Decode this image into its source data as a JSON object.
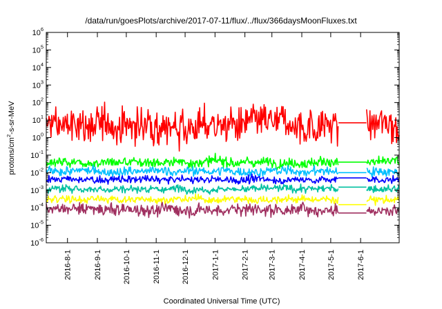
{
  "chart_data": {
    "type": "line",
    "title": "/data/run/goesPlots/archive/2017-07-11/flux/../flux/366daysMoonFluxes.txt",
    "xlabel": "Coordinated Universal Time (UTC)",
    "ylabel": {
      "prefix": "protons/cm",
      "sup": "2",
      "suffix": "-s-sr-MeV"
    },
    "yscale": "log",
    "ylim": [
      1e-06,
      1000000.0
    ],
    "xlim": [
      "2016-07-10",
      "2017-07-11"
    ],
    "y_ticks": [
      {
        "value": 1e-06,
        "base": "10",
        "exp": "-6"
      },
      {
        "value": 1e-05,
        "base": "10",
        "exp": "-5"
      },
      {
        "value": 0.0001,
        "base": "10",
        "exp": "-4"
      },
      {
        "value": 0.001,
        "base": "10",
        "exp": "-3"
      },
      {
        "value": 0.01,
        "base": "10",
        "exp": "-2"
      },
      {
        "value": 0.1,
        "base": "10",
        "exp": "-1"
      },
      {
        "value": 1,
        "base": "10",
        "exp": "0"
      },
      {
        "value": 10,
        "base": "10",
        "exp": "1"
      },
      {
        "value": 100,
        "base": "10",
        "exp": "2"
      },
      {
        "value": 1000,
        "base": "10",
        "exp": "3"
      },
      {
        "value": 10000,
        "base": "10",
        "exp": "4"
      },
      {
        "value": 100000,
        "base": "10",
        "exp": "5"
      },
      {
        "value": 1000000,
        "base": "10",
        "exp": "6"
      }
    ],
    "x_ticks": [
      {
        "date": "2016-08-01",
        "label": "2016-8-1"
      },
      {
        "date": "2016-09-01",
        "label": "2016-9-1"
      },
      {
        "date": "2016-10-01",
        "label": "2016-10-1"
      },
      {
        "date": "2016-11-01",
        "label": "2016-11-1"
      },
      {
        "date": "2016-12-01",
        "label": "2016-12-1"
      },
      {
        "date": "2017-01-01",
        "label": "2017-1-1"
      },
      {
        "date": "2017-02-01",
        "label": "2017-2-1"
      },
      {
        "date": "2017-03-01",
        "label": "2017-3-1"
      },
      {
        "date": "2017-04-01",
        "label": "2017-4-1"
      },
      {
        "date": "2017-05-01",
        "label": "2017-5-1"
      },
      {
        "date": "2017-06-01",
        "label": "2017-6-1"
      }
    ],
    "data_gap": {
      "start": "2017-05-09",
      "end": "2017-06-07"
    },
    "series": [
      {
        "color": "#ff0000",
        "typical": 5,
        "noise_log10": 0.7,
        "gap_value": 7
      },
      {
        "color": "#00ff00",
        "typical": 0.04,
        "noise_log10": 0.2,
        "gap_value": 0.04
      },
      {
        "color": "#00bfff",
        "typical": 0.012,
        "noise_log10": 0.18,
        "gap_value": 0.01
      },
      {
        "color": "#0000ff",
        "typical": 0.004,
        "noise_log10": 0.15,
        "gap_value": 0.005
      },
      {
        "color": "#00c0a0",
        "typical": 0.0012,
        "noise_log10": 0.15,
        "gap_value": 0.0015
      },
      {
        "color": "#ffff00",
        "typical": 0.0003,
        "noise_log10": 0.15,
        "gap_value": 0.00015
      },
      {
        "color": "#a03060",
        "typical": 8e-05,
        "noise_log10": 0.25,
        "gap_value": 5e-05
      }
    ]
  }
}
